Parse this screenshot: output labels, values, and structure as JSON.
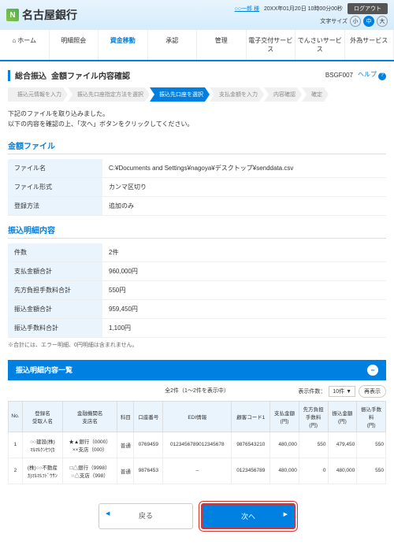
{
  "header": {
    "bank_name": "名古屋銀行",
    "user_link": "○○一郎 様",
    "timestamp": "20XX年01月20日 10時00分00秒",
    "font_label": "文字サイズ",
    "sizes": [
      "小",
      "中",
      "大"
    ],
    "logout": "ログアウト"
  },
  "nav": [
    "ホーム",
    "明細照会",
    "資金移動",
    "承認",
    "管理",
    "電子交付サービス",
    "でんさいサービス",
    "外為サービス"
  ],
  "page": {
    "crumb": "総合振込",
    "title": "金額ファイル内容確認",
    "code": "BSGF007",
    "help": "ヘルプ"
  },
  "steps": [
    "振込元情報を入力",
    "振込先口座指定方法を選択",
    "振込先口座を選択",
    "支払金額を入力",
    "内容確認",
    "確定"
  ],
  "active_step": 2,
  "intro1": "下記のファイルを取り込みました。",
  "intro2": "以下の内容を確認の上、「次へ」ボタンをクリックしてください。",
  "file_section": "金額ファイル",
  "file_rows": [
    [
      "ファイル名",
      "C:¥Documents and Settings¥nagoya¥デスクトップ¥senddata.csv"
    ],
    [
      "ファイル形式",
      "カンマ区切り"
    ],
    [
      "登録方法",
      "追加のみ"
    ]
  ],
  "detail_section": "振込明細内容",
  "detail_rows": [
    [
      "件数",
      "2件"
    ],
    [
      "支払金額合計",
      "960,000円"
    ],
    [
      "先方負担手数料合計",
      "550円"
    ],
    [
      "振込金額合計",
      "959,450円"
    ],
    [
      "振込手数料合計",
      "1,100円"
    ]
  ],
  "detail_note": "※合計には、エラー明細、0円明細は含まれません。",
  "list_band": "振込明細内容一覧",
  "list_count": "全2件（1～2件を表示中）",
  "list_perpage_label": "表示件数：",
  "list_perpage": "10件",
  "refresh": "再表示",
  "columns": [
    "No.",
    "登録名\n受取人名",
    "金融機関名\n支店名",
    "科目",
    "口座番号",
    "EDI情報",
    "顧客コード1",
    "支払金額\n(円)",
    "先方負担\n手数料\n(円)",
    "振込金額\n(円)",
    "振込手数\n料\n(円)"
  ],
  "rows": [
    {
      "no": "1",
      "name": "○○建設(株)\nﾏﾙﾏﾙｹﾝｾﾂ(ｶ",
      "bank": "★▲銀行（0000）\n××支店（000）",
      "type": "普通",
      "acct": "0769459",
      "edi": "0123456789012345678",
      "cust": "9876543210",
      "pay": "480,000",
      "fee": "550",
      "amt": "479,450",
      "tfee": "550"
    },
    {
      "no": "2",
      "name": "(株)○○不動産\nｶ)ﾏﾙﾏﾙﾌﾄﾞｳｻﾝ",
      "bank": "□△銀行（9998）\n○△支店（998）",
      "type": "普通",
      "acct": "9876453",
      "edi": "–",
      "cust": "0123456789",
      "pay": "480,000",
      "fee": "0",
      "amt": "480,000",
      "tfee": "550"
    }
  ],
  "back": "戻る",
  "next": "次へ"
}
